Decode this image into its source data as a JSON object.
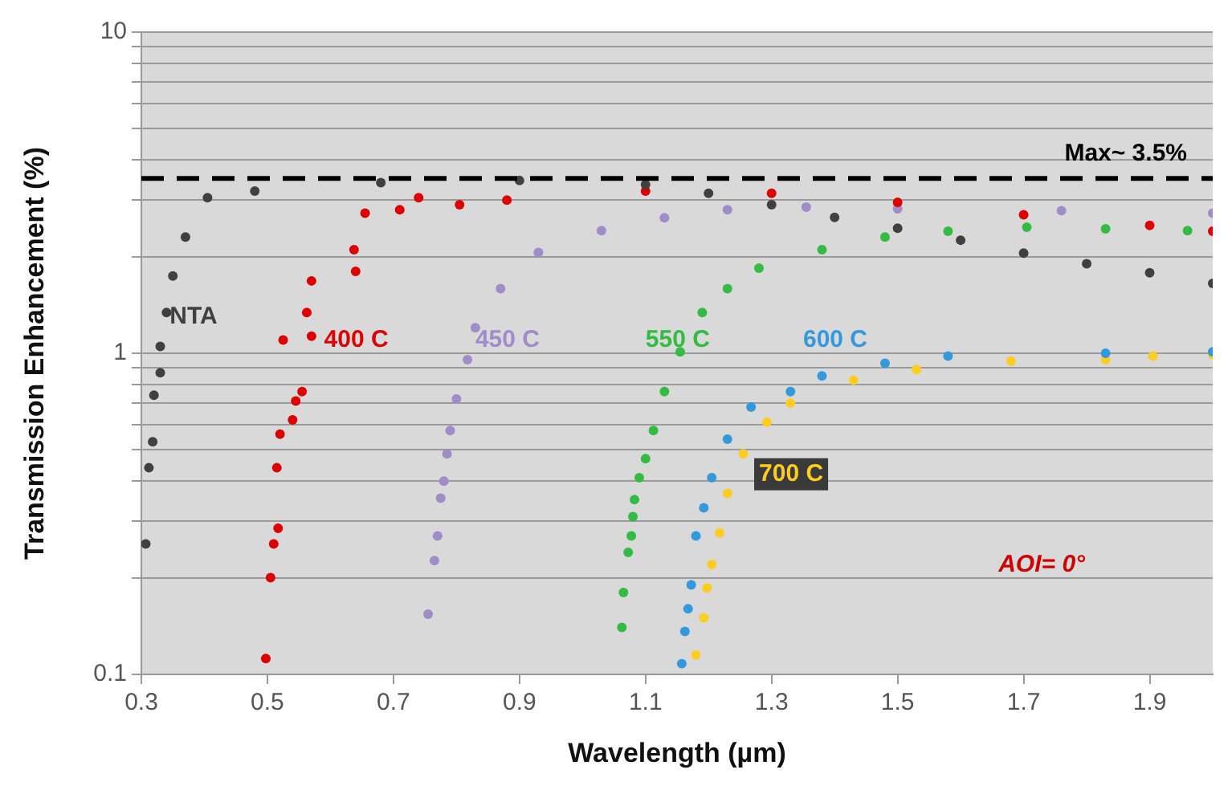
{
  "chart_data": {
    "type": "scatter",
    "xlabel": "Wavelength (µm)",
    "ylabel": "Transmission Enhancement (%)",
    "log": "y",
    "grid": "y",
    "legend": false,
    "marker": "circle",
    "xlim": [
      0.3,
      2.0
    ],
    "xticks": [
      0.3,
      0.5,
      0.7,
      0.9,
      1.1,
      1.3,
      1.5,
      1.7,
      1.9
    ],
    "ylim": [
      0.1,
      10
    ],
    "yticks": [
      0.1,
      {
        "value": 0.2,
        "label": null
      },
      {
        "value": 0.3,
        "label": null
      },
      {
        "value": 0.4,
        "label": null
      },
      {
        "value": 0.5,
        "label": null
      },
      {
        "value": 0.6,
        "label": null
      },
      {
        "value": 0.7,
        "label": null
      },
      {
        "value": 0.8,
        "label": null
      },
      {
        "value": 0.9,
        "label": null
      },
      1,
      {
        "value": 2,
        "label": null
      },
      {
        "value": 3,
        "label": null
      },
      {
        "value": 4,
        "label": null
      },
      {
        "value": 5,
        "label": null
      },
      {
        "value": 6,
        "label": null
      },
      {
        "value": 7,
        "label": null
      },
      {
        "value": 8,
        "label": null
      },
      {
        "value": 9,
        "label": null
      },
      10
    ],
    "ref_lines": [
      {
        "axis": "y",
        "value": 3.5,
        "label": "Max~ 3.5%",
        "color": "#000000",
        "line_style": "dashed"
      }
    ],
    "annotations": [
      "AOI= 0°"
    ],
    "series": [
      {
        "name": "NTA",
        "color": "#404040",
        "x": [
          0.307,
          0.312,
          0.318,
          0.32,
          0.33,
          0.33,
          0.34,
          0.35,
          0.37,
          0.405,
          0.48,
          0.68,
          0.9,
          1.1,
          1.2,
          1.3,
          1.4,
          1.5,
          1.6,
          1.7,
          1.8,
          1.9,
          2.0
        ],
        "values": [
          0.255,
          0.44,
          0.53,
          0.74,
          0.87,
          1.05,
          1.34,
          1.74,
          2.3,
          3.05,
          3.2,
          3.4,
          3.45,
          3.35,
          3.15,
          2.9,
          2.65,
          2.45,
          2.25,
          2.05,
          1.9,
          1.78,
          1.65
        ]
      },
      {
        "name": "400 C",
        "color": "#dd0000",
        "x": [
          0.4975,
          0.505,
          0.51,
          0.517,
          0.515,
          0.52,
          0.54,
          0.545,
          0.555,
          0.525,
          0.57,
          0.5625,
          0.57,
          0.64,
          0.6375,
          0.655,
          0.71,
          0.74,
          0.805,
          0.88,
          1.1,
          1.3,
          1.5,
          1.7,
          1.9,
          2.0
        ],
        "values": [
          0.112,
          0.2,
          0.255,
          0.285,
          0.44,
          0.56,
          0.62,
          0.71,
          0.76,
          1.1,
          1.13,
          1.34,
          1.68,
          1.8,
          2.1,
          2.73,
          2.8,
          3.05,
          2.9,
          3.0,
          3.2,
          3.15,
          2.95,
          2.7,
          2.5,
          2.4
        ]
      },
      {
        "name": "450 C",
        "color": "#a08cc8",
        "x": [
          0.755,
          0.765,
          0.77,
          0.775,
          0.78,
          0.785,
          0.79,
          0.8,
          0.8175,
          0.83,
          0.87,
          0.93,
          1.03,
          1.13,
          1.23,
          1.355,
          1.5,
          1.76,
          2.0
        ],
        "values": [
          0.154,
          0.226,
          0.27,
          0.354,
          0.4,
          0.486,
          0.575,
          0.72,
          0.955,
          1.2,
          1.59,
          2.06,
          2.41,
          2.64,
          2.8,
          2.85,
          2.82,
          2.78,
          2.73
        ]
      },
      {
        "name": "550 C",
        "color": "#33bb44",
        "x": [
          1.0625,
          1.065,
          1.0725,
          1.0775,
          1.08,
          1.0825,
          1.09,
          1.1,
          1.1125,
          1.13,
          1.155,
          1.19,
          1.23,
          1.28,
          1.38,
          1.48,
          1.58,
          1.705,
          1.83,
          1.96
        ],
        "values": [
          0.14,
          0.18,
          0.24,
          0.27,
          0.31,
          0.35,
          0.41,
          0.47,
          0.575,
          0.76,
          1.01,
          1.34,
          1.59,
          1.84,
          2.1,
          2.3,
          2.4,
          2.47,
          2.44,
          2.41
        ]
      },
      {
        "name": "600 C",
        "color": "#3399dd",
        "x": [
          1.1575,
          1.1625,
          1.1675,
          1.1725,
          1.18,
          1.1925,
          1.205,
          1.23,
          1.2675,
          1.33,
          1.38,
          1.48,
          1.58,
          1.83,
          2.0
        ],
        "values": [
          0.108,
          0.136,
          0.16,
          0.19,
          0.27,
          0.33,
          0.41,
          0.54,
          0.68,
          0.76,
          0.85,
          0.93,
          0.98,
          1.0,
          1.01
        ]
      },
      {
        "name": "700 C",
        "color": "#ffcc22",
        "x": [
          1.18,
          1.1925,
          1.1975,
          1.205,
          1.2175,
          1.23,
          1.255,
          1.2925,
          1.33,
          1.43,
          1.53,
          1.68,
          1.83,
          1.905,
          2.0
        ],
        "values": [
          0.115,
          0.15,
          0.186,
          0.22,
          0.276,
          0.366,
          0.486,
          0.61,
          0.7,
          0.825,
          0.89,
          0.945,
          0.955,
          0.98,
          0.99
        ]
      }
    ]
  }
}
